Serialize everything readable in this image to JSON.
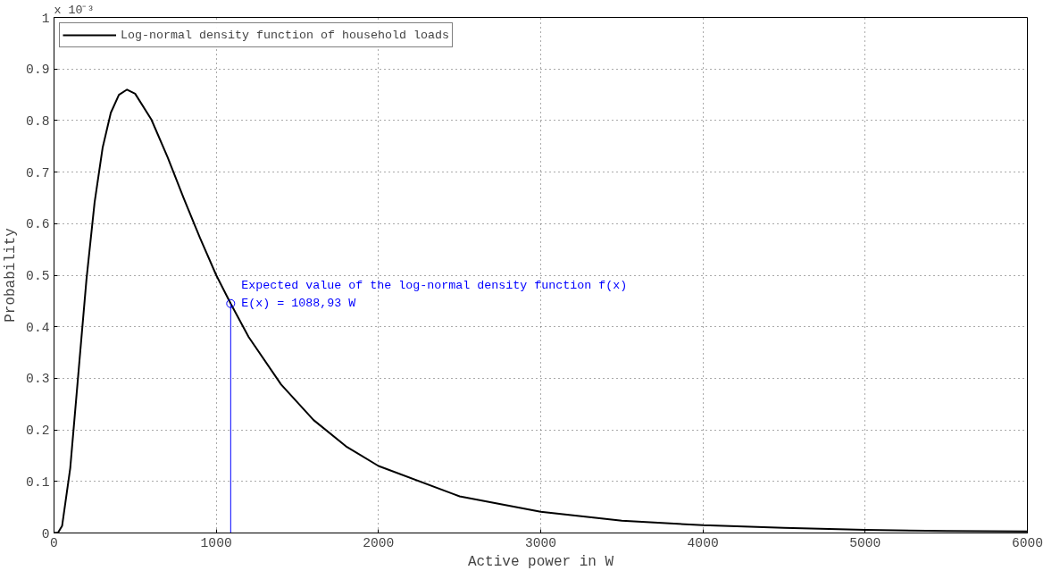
{
  "chart_data": {
    "type": "line",
    "xlabel": "Active power in W",
    "ylabel": "Probability",
    "xlim": [
      0,
      6000
    ],
    "ylim": [
      0,
      1
    ],
    "xticks": [
      0,
      1000,
      2000,
      3000,
      4000,
      5000,
      6000
    ],
    "yticks": [
      0,
      0.1,
      0.2,
      0.3,
      0.4,
      0.5,
      0.6,
      0.7,
      0.8,
      0.9,
      1
    ],
    "grid": true,
    "legend": "top left",
    "line_style": "solid",
    "series": [
      {
        "name": "Log-normal density function of household loads",
        "color": "#000000",
        "marker": "none",
        "x": [
          0,
          25,
          50,
          100,
          150,
          200,
          250,
          300,
          350,
          400,
          450,
          500,
          600,
          700,
          800,
          900,
          1000,
          1088.93,
          1200,
          1400,
          1600,
          1800,
          2000,
          2500,
          3000,
          3500,
          4000,
          4500,
          5000,
          5500,
          6000
        ],
        "values": [
          0,
          0.001,
          0.014,
          0.126,
          0.309,
          0.492,
          0.641,
          0.748,
          0.815,
          0.85,
          0.86,
          0.852,
          0.802,
          0.729,
          0.649,
          0.572,
          0.5,
          0.445,
          0.38,
          0.288,
          0.219,
          0.168,
          0.13,
          0.071,
          0.041,
          0.024,
          0.015,
          0.01,
          0.006,
          0.004,
          0.003
        ]
      },
      {
        "type": "lollipop",
        "color": "#0000ff",
        "marker": "circle",
        "x": [
          1088.93
        ],
        "values": [
          0.445
        ]
      }
    ],
    "annotations": [
      "x 10⁻³",
      "Expected value of the log-normal density function f(x)",
      "E(x) = 1088,93 W"
    ]
  }
}
